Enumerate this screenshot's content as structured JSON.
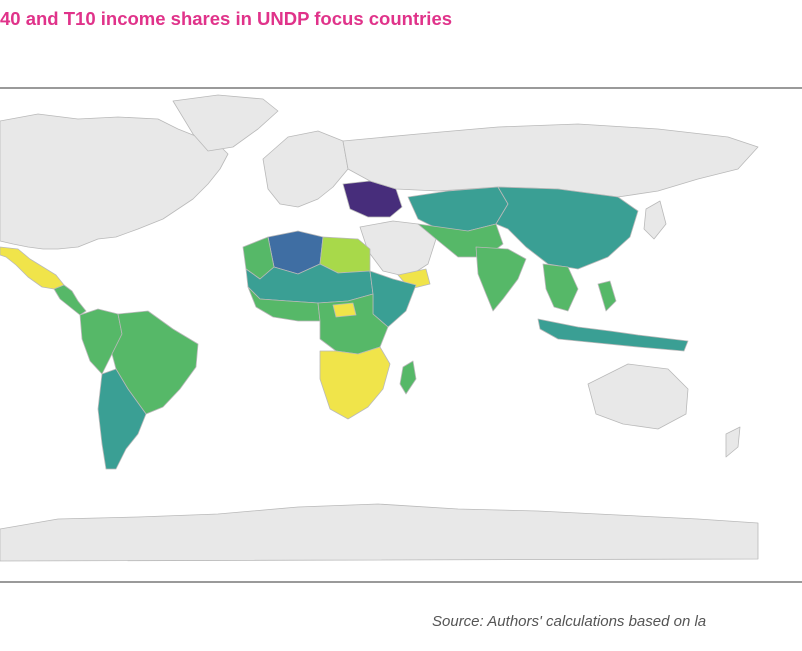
{
  "title": "40 and T10 income shares in UNDP focus countries",
  "source": "Source: Authors' calculations based on la",
  "palette": {
    "purple": "#472d7b",
    "blue": "#3f6ea3",
    "teal": "#3a9f94",
    "green": "#56b868",
    "lightgreen": "#a8d94a",
    "yellow": "#f0e44a",
    "nodata": "#e8e8e8",
    "border": "#b9b9b9"
  }
}
